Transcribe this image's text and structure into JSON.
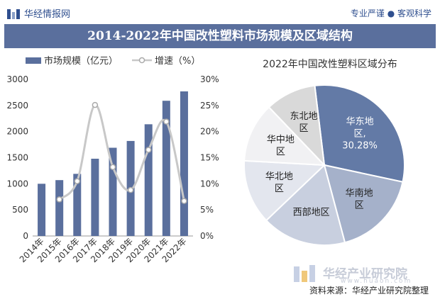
{
  "header": {
    "brand": "华经情报网",
    "slogan": "专业严谨 ● 客观科学",
    "title": "2014-2022年中国改性塑料市场规模及区域结构"
  },
  "footer": {
    "watermark": "华经产业研究院",
    "watermark_url": "www.huaon.com",
    "source": "资料来源：华经产业研究院整理"
  },
  "colors": {
    "bar": "#5a6f9d",
    "line": "#c8c8c8",
    "title_bg": "#5a6f9d"
  },
  "chart_data": [
    {
      "type": "bar",
      "categories": [
        "2014年",
        "2015年",
        "2016年",
        "2017年",
        "2018年",
        "2019年",
        "2020年",
        "2021年",
        "2022年"
      ],
      "series": [
        {
          "name": "市场规模（亿元）",
          "type": "bar",
          "axis": "left",
          "values": [
            1000,
            1070,
            1190,
            1480,
            1690,
            1820,
            2140,
            2590,
            2770
          ]
        },
        {
          "name": "增速（%）",
          "type": "line",
          "axis": "right",
          "values": [
            null,
            7.0,
            10.5,
            25.1,
            13.2,
            8.8,
            16.5,
            21.9,
            6.7
          ]
        }
      ],
      "y_left": {
        "min": 0,
        "max": 3000,
        "ticks": [
          "0",
          "500",
          "1000",
          "1500",
          "2000",
          "2500",
          "3000"
        ]
      },
      "y_right": {
        "min": 0,
        "max": 30,
        "ticks": [
          "0%",
          "5%",
          "10%",
          "15%",
          "20%",
          "25%",
          "30%"
        ]
      },
      "legend_position": "top"
    },
    {
      "type": "pie",
      "title": "2022年中国改性塑料区域分布",
      "slices": [
        {
          "label": "华东地区",
          "display": [
            "华东地",
            "区,",
            "30.28%"
          ],
          "value": 30.28,
          "color": "#637aa6",
          "text_color": "#ffffff"
        },
        {
          "label": "华南地区",
          "display": [
            "华南地",
            "区"
          ],
          "value": 17.5,
          "color": "#a5b1ca",
          "text_color": "#222222"
        },
        {
          "label": "西部地区",
          "display": [
            "西部地区"
          ],
          "value": 17.0,
          "color": "#c8cfdf",
          "text_color": "#222222"
        },
        {
          "label": "华北地区",
          "display": [
            "华北地",
            "区"
          ],
          "value": 13.0,
          "color": "#e3e6ee",
          "text_color": "#222222"
        },
        {
          "label": "华中地区",
          "display": [
            "华中地",
            "区"
          ],
          "value": 12.0,
          "color": "#f1f1f3",
          "text_color": "#222222"
        },
        {
          "label": "东北地区",
          "display": [
            "东北地",
            "区"
          ],
          "value": 10.22,
          "color": "#d9d9d9",
          "text_color": "#222222"
        }
      ]
    }
  ]
}
